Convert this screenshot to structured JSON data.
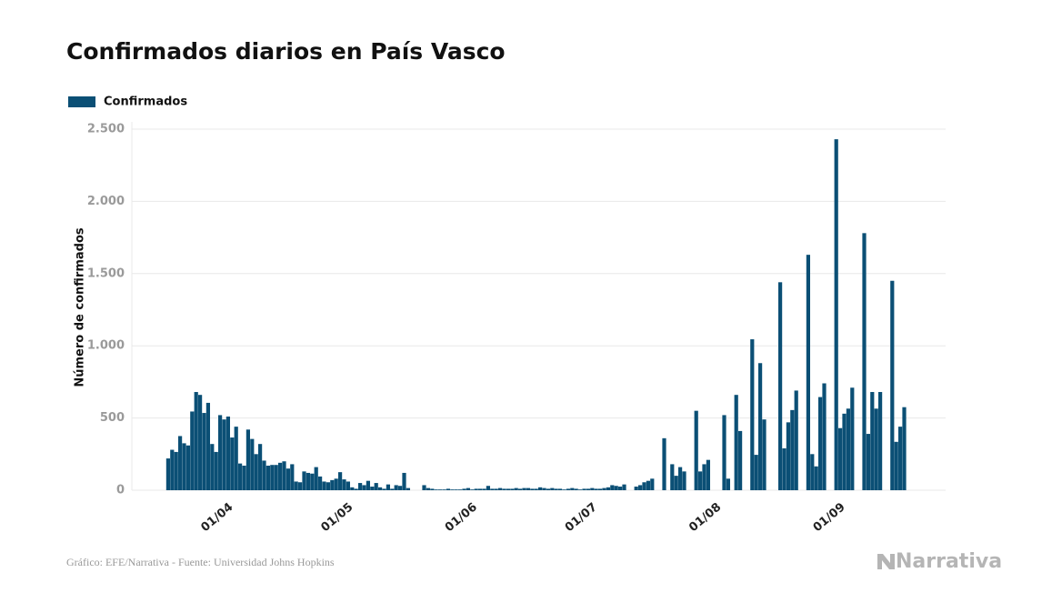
{
  "chart_data": {
    "type": "bar",
    "title": "Confirmados diarios en País Vasco",
    "y_label": "Número de confirmados",
    "source": "Gráfico: EFE/Narrativa - Fuente: Universidad Johns Hopkins",
    "logo": "Narrativa",
    "ylim": [
      0,
      2500
    ],
    "yticks": [
      0,
      500,
      {
        "value": 1000,
        "label": "1.000"
      },
      {
        "value": 1500,
        "label": "1.500"
      },
      {
        "value": 2000,
        "label": "2.000"
      },
      {
        "value": 2500,
        "label": "2.500"
      }
    ],
    "grid": true,
    "legend": "top-left",
    "categories": [
      null,
      null,
      null,
      null,
      null,
      null,
      null,
      null,
      null,
      null,
      null,
      null,
      null,
      null,
      "01/04",
      null,
      null,
      null,
      null,
      null,
      null,
      null,
      null,
      null,
      null,
      null,
      null,
      null,
      null,
      null,
      null,
      null,
      null,
      null,
      null,
      null,
      null,
      null,
      null,
      null,
      null,
      null,
      null,
      null,
      "01/05",
      null,
      null,
      null,
      null,
      null,
      null,
      null,
      null,
      null,
      null,
      null,
      null,
      null,
      null,
      null,
      null,
      null,
      null,
      null,
      null,
      null,
      null,
      null,
      null,
      null,
      null,
      null,
      null,
      null,
      null,
      "01/06",
      null,
      null,
      null,
      null,
      null,
      null,
      null,
      null,
      null,
      null,
      null,
      null,
      null,
      null,
      null,
      null,
      null,
      null,
      null,
      null,
      null,
      null,
      null,
      null,
      null,
      null,
      null,
      null,
      null,
      "01/07",
      null,
      null,
      null,
      null,
      null,
      null,
      null,
      null,
      null,
      null,
      null,
      null,
      null,
      null,
      null,
      null,
      null,
      null,
      null,
      null,
      null,
      null,
      null,
      null,
      null,
      null,
      null,
      null,
      null,
      null,
      "01/08",
      null,
      null,
      null,
      null,
      null,
      null,
      null,
      null,
      null,
      null,
      null,
      null,
      null,
      null,
      null,
      null,
      null,
      null,
      null,
      null,
      null,
      null,
      null,
      null,
      null,
      null,
      null,
      null,
      null,
      null,
      "01/09",
      null,
      null,
      null,
      null,
      null,
      null,
      null,
      null,
      null,
      null,
      null,
      null,
      null,
      null,
      null,
      null,
      null
    ],
    "series": [
      {
        "name": "Confirmados",
        "color": "#0b4f75",
        "values": [
          220,
          280,
          265,
          375,
          325,
          310,
          545,
          680,
          660,
          535,
          605,
          320,
          265,
          520,
          490,
          510,
          365,
          440,
          185,
          170,
          420,
          355,
          250,
          320,
          205,
          170,
          175,
          175,
          190,
          200,
          150,
          180,
          60,
          55,
          130,
          120,
          115,
          160,
          95,
          60,
          55,
          70,
          80,
          125,
          75,
          60,
          20,
          10,
          50,
          35,
          65,
          25,
          50,
          20,
          10,
          40,
          10,
          35,
          30,
          120,
          15,
          0,
          0,
          0,
          35,
          15,
          10,
          5,
          5,
          5,
          10,
          5,
          5,
          5,
          10,
          15,
          5,
          10,
          10,
          10,
          30,
          10,
          10,
          15,
          10,
          10,
          10,
          15,
          10,
          15,
          15,
          10,
          10,
          20,
          15,
          10,
          15,
          10,
          10,
          5,
          10,
          15,
          10,
          5,
          10,
          10,
          15,
          10,
          10,
          15,
          20,
          35,
          30,
          25,
          40,
          0,
          0,
          25,
          35,
          55,
          65,
          80,
          0,
          0,
          360,
          0,
          180,
          100,
          160,
          130,
          0,
          0,
          550,
          130,
          180,
          210,
          0,
          0,
          0,
          520,
          80,
          0,
          660,
          410,
          0,
          0,
          1045,
          245,
          880,
          490,
          0,
          0,
          0,
          1440,
          290,
          470,
          555,
          690,
          0,
          0,
          1630,
          250,
          165,
          645,
          740,
          0,
          0,
          2430,
          430,
          530,
          565,
          710,
          0,
          0,
          1780,
          390,
          680,
          565,
          680,
          0,
          0,
          1450,
          335,
          440,
          575
        ]
      }
    ]
  }
}
